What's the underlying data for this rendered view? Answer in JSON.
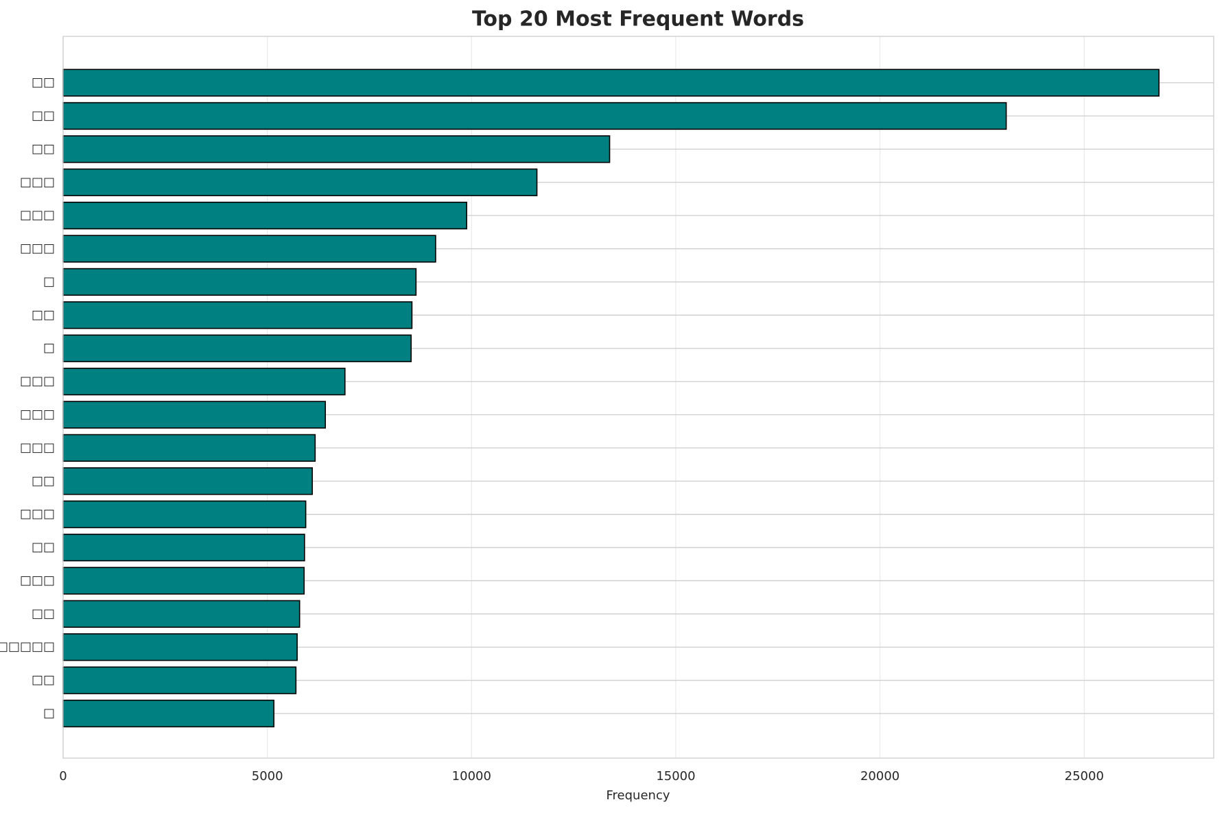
{
  "chart_data": {
    "type": "barh",
    "title": "Top 20 Most Frequent Words",
    "xlabel": "Frequency",
    "categories": [
      "□□",
      "□□",
      "□□",
      "□□□",
      "□□□",
      "□□□",
      "□",
      "□□",
      "□",
      "□□□",
      "□□□",
      "□□□",
      "□□",
      "□□□",
      "□□",
      "□□□",
      "□□",
      "□□□□□",
      "□□",
      "□"
    ],
    "values": [
      26830,
      23090,
      13380,
      11600,
      9880,
      9120,
      8640,
      8540,
      8520,
      6900,
      6420,
      6170,
      6100,
      5940,
      5910,
      5900,
      5790,
      5730,
      5700,
      5160
    ],
    "color": "#008080",
    "edgecolor": "#000000",
    "xlim": [
      0,
      28170
    ],
    "xticks": [
      0,
      5000,
      10000,
      15000,
      20000,
      25000
    ],
    "grid": true
  }
}
